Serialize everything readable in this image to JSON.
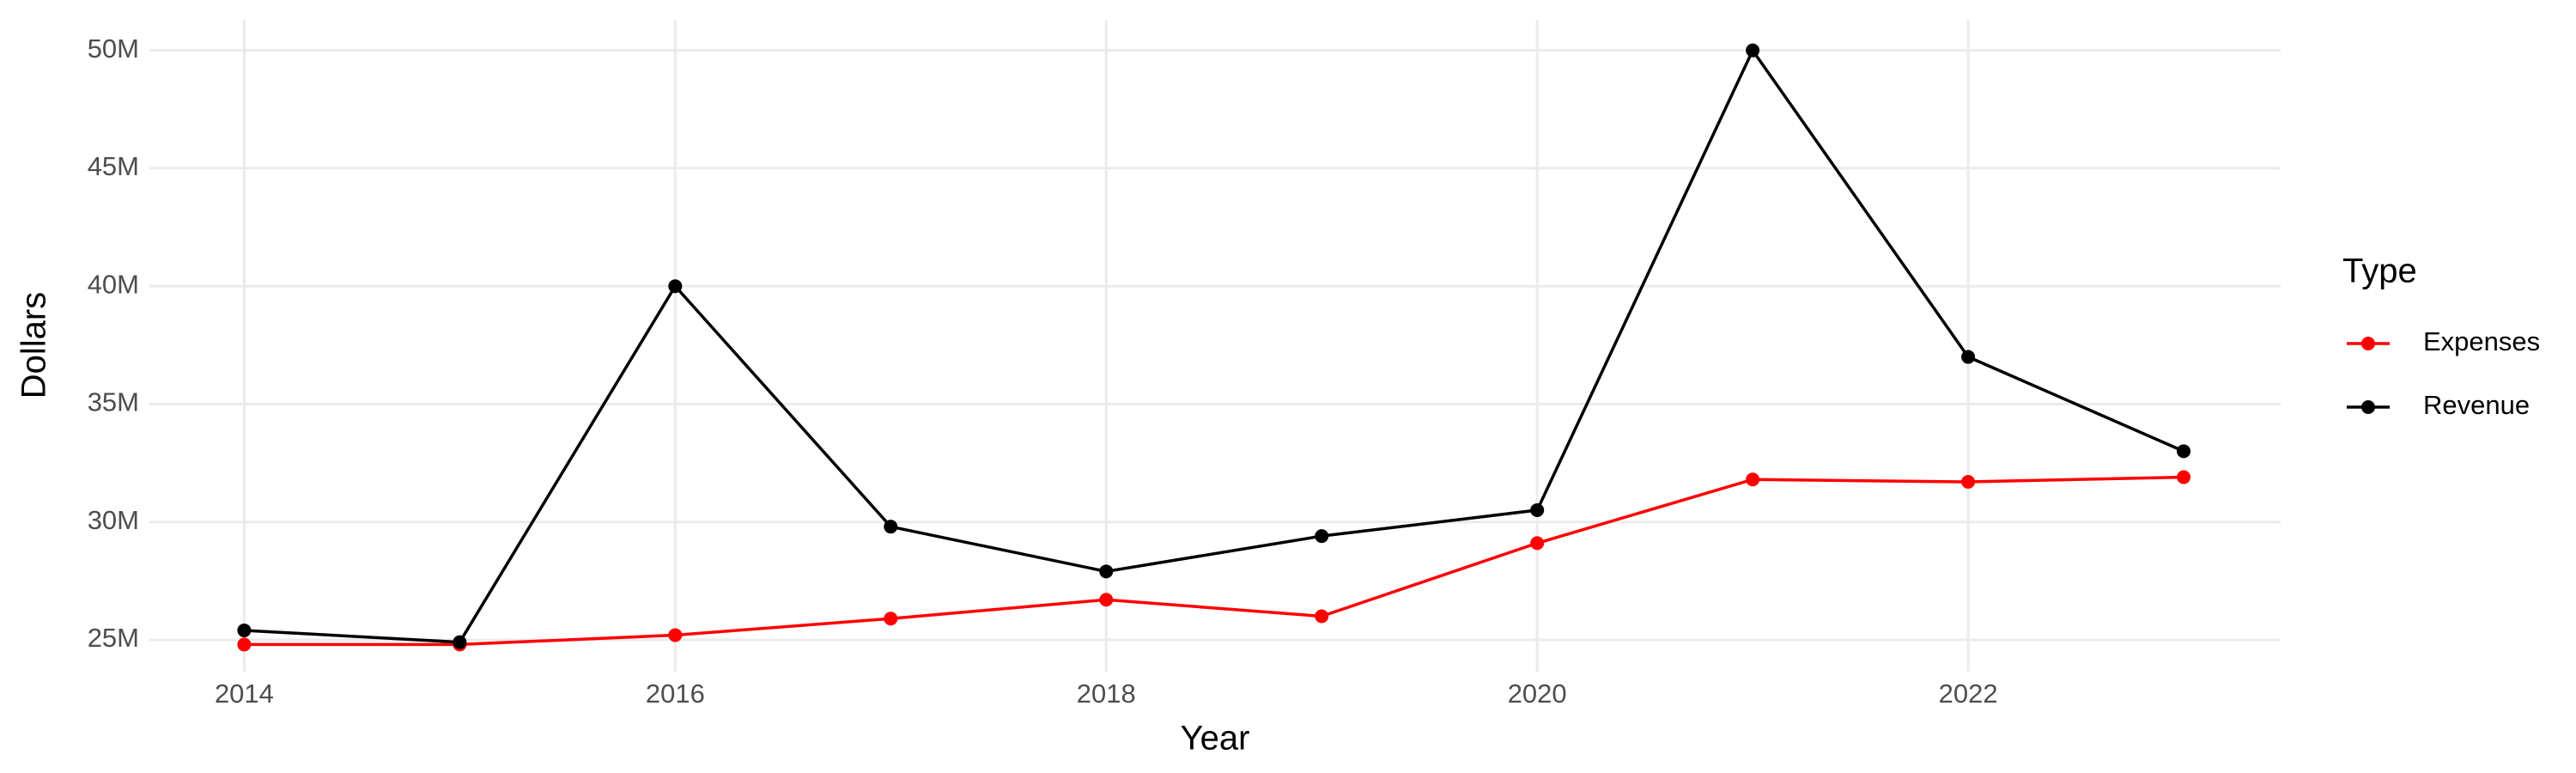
{
  "chart_data": {
    "type": "line",
    "x_label": "Year",
    "y_label": "Dollars",
    "legend_title": "Type",
    "x": [
      2014,
      2015,
      2016,
      2017,
      2018,
      2019,
      2020,
      2021,
      2022,
      2023
    ],
    "series": [
      {
        "name": "Expenses",
        "color": "#ff0000",
        "values": [
          24800000,
          24800000,
          25200000,
          25900000,
          26700000,
          26000000,
          29100000,
          31800000,
          31700000,
          31900000
        ]
      },
      {
        "name": "Revenue",
        "color": "#000000",
        "values": [
          25400000,
          24900000,
          40000000,
          29800000,
          27900000,
          29400000,
          30500000,
          50000000,
          37000000,
          33000000
        ]
      }
    ],
    "xlim": [
      2013.56,
      2023.45
    ],
    "xticks": [
      2014,
      2016,
      2018,
      2020,
      2022
    ],
    "ylim": [
      23650000,
      51300000
    ],
    "yticks": [
      {
        "value": 25000000,
        "label": "25M"
      },
      {
        "value": 30000000,
        "label": "30M"
      },
      {
        "value": 35000000,
        "label": "35M"
      },
      {
        "value": 40000000,
        "label": "40M"
      },
      {
        "value": 45000000,
        "label": "45M"
      },
      {
        "value": 50000000,
        "label": "50M"
      }
    ],
    "grid": true,
    "legend": "right"
  }
}
